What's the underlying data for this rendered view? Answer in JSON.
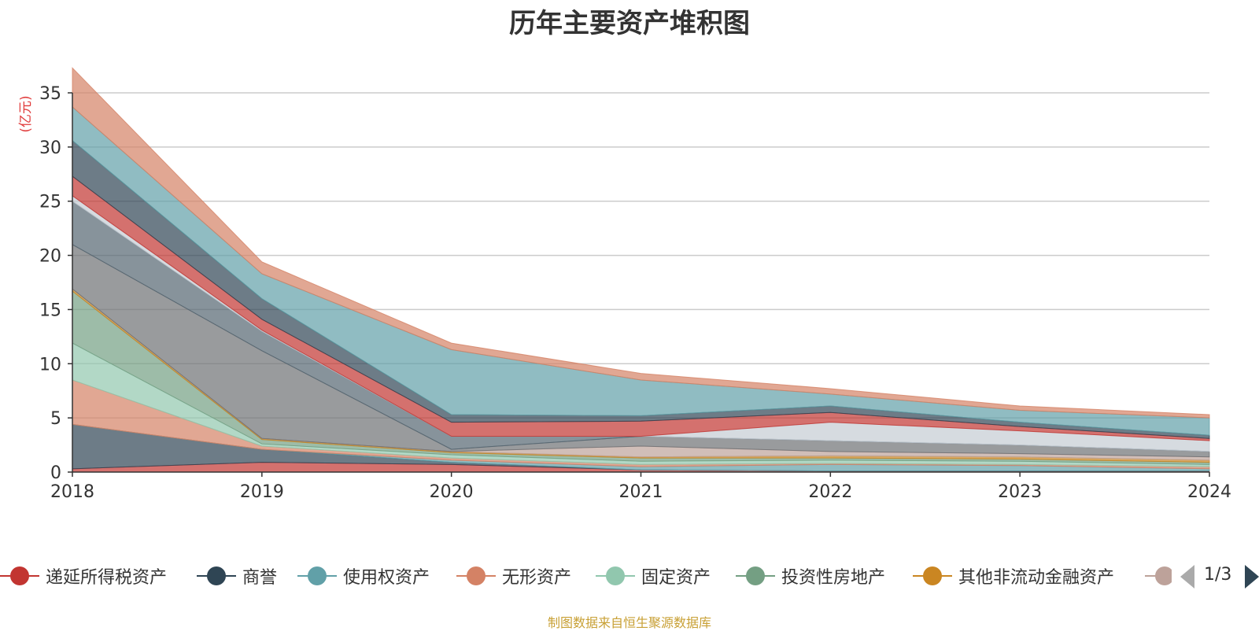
{
  "chart_data": {
    "type": "area",
    "stacked": true,
    "title": "历年主要资产堆积图",
    "ylabel": "(亿元)",
    "xlabel": "",
    "x": [
      "2018",
      "2019",
      "2020",
      "2021",
      "2022",
      "2023",
      "2024"
    ],
    "yticks": [
      "0",
      "5",
      "10",
      "15",
      "20",
      "25",
      "30",
      "35"
    ],
    "ylim": [
      0,
      35
    ],
    "grid": true,
    "legend_position": "bottom",
    "legend_page": "1/3",
    "series": [
      {
        "name": "递延所得税资产",
        "color": "#c23531",
        "values": [
          0.3,
          0.9,
          0.7,
          0.2,
          0.1,
          0.1,
          0.1
        ]
      },
      {
        "name": "商誉",
        "color": "#2f4554",
        "values": [
          4.1,
          1.2,
          0.2,
          0.0,
          0.0,
          0.0,
          0.0
        ]
      },
      {
        "name": "使用权资产",
        "color": "#61a0a8",
        "values": [
          0.0,
          0.0,
          0.2,
          0.3,
          0.6,
          0.5,
          0.2
        ]
      },
      {
        "name": "无形资产",
        "color": "#d48265",
        "values": [
          4.1,
          0.3,
          0.2,
          0.2,
          0.1,
          0.1,
          0.2
        ]
      },
      {
        "name": "固定资产",
        "color": "#91c7ae",
        "values": [
          3.4,
          0.2,
          0.3,
          0.3,
          0.3,
          0.3,
          0.2
        ]
      },
      {
        "name": "投资性房地产",
        "color": "#749f83",
        "values": [
          4.8,
          0.4,
          0.2,
          0.3,
          0.2,
          0.2,
          0.2
        ]
      },
      {
        "name": "其他非流动金融资产",
        "color": "#ca8622",
        "values": [
          0.2,
          0.1,
          0.1,
          0.1,
          0.2,
          0.2,
          0.2
        ]
      },
      {
        "name": "",
        "color": "#bda29a",
        "values": [
          0.0,
          0.0,
          0.0,
          1.0,
          0.4,
          0.3,
          0.3
        ]
      },
      {
        "name": "",
        "color": "#6e7074",
        "values": [
          4.1,
          8.1,
          0.2,
          0.9,
          1.0,
          0.8,
          0.5
        ]
      },
      {
        "name": "",
        "color": "#546570",
        "values": [
          4.0,
          1.8,
          1.2,
          0.0,
          0.0,
          0.0,
          0.0
        ]
      },
      {
        "name": "",
        "color": "#c4ccd3",
        "values": [
          0.5,
          0.1,
          0.0,
          0.0,
          1.7,
          1.3,
          1.0
        ]
      },
      {
        "name": "",
        "color": "#c23531",
        "values": [
          1.8,
          1.0,
          1.3,
          1.4,
          0.9,
          0.4,
          0.2
        ]
      },
      {
        "name": "",
        "color": "#2f4554",
        "values": [
          3.3,
          1.9,
          0.7,
          0.5,
          0.6,
          0.4,
          0.3
        ]
      },
      {
        "name": "",
        "color": "#61a0a8",
        "values": [
          3.1,
          2.3,
          6.0,
          3.3,
          1.1,
          1.1,
          1.6
        ]
      },
      {
        "name": "",
        "color": "#d48265",
        "values": [
          3.6,
          1.1,
          0.6,
          0.6,
          0.5,
          0.4,
          0.3
        ]
      }
    ]
  },
  "source_note": "制图数据来自恒生聚源数据库"
}
